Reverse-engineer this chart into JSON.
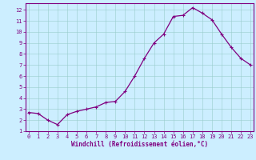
{
  "x": [
    0,
    1,
    2,
    3,
    4,
    5,
    6,
    7,
    8,
    9,
    10,
    11,
    12,
    13,
    14,
    15,
    16,
    17,
    18,
    19,
    20,
    21,
    22,
    23
  ],
  "y": [
    2.7,
    2.6,
    2.0,
    1.6,
    2.5,
    2.8,
    3.0,
    3.2,
    3.6,
    3.7,
    4.6,
    6.0,
    7.6,
    9.0,
    9.8,
    11.4,
    11.5,
    12.2,
    11.7,
    11.1,
    9.8,
    8.6,
    7.6,
    7.0
  ],
  "xlabel": "Windchill (Refroidissement éolien,°C)",
  "xlim_left": -0.3,
  "xlim_right": 23.3,
  "ylim_bottom": 1.0,
  "ylim_top": 12.6,
  "yticks": [
    1,
    2,
    3,
    4,
    5,
    6,
    7,
    8,
    9,
    10,
    11,
    12
  ],
  "xticks": [
    0,
    1,
    2,
    3,
    4,
    5,
    6,
    7,
    8,
    9,
    10,
    11,
    12,
    13,
    14,
    15,
    16,
    17,
    18,
    19,
    20,
    21,
    22,
    23
  ],
  "line_color": "#800080",
  "marker": "+",
  "bg_color": "#cceeff",
  "grid_color": "#99cccc",
  "spine_color": "#800080",
  "tick_fontsize": 5.0,
  "xlabel_fontsize": 5.5,
  "linewidth": 0.9,
  "markersize": 2.5,
  "markeredgewidth": 0.8
}
